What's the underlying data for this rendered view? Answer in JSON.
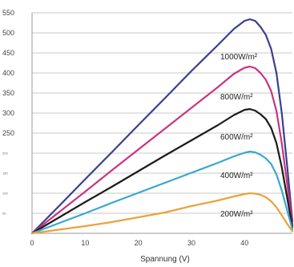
{
  "chart_data": {
    "type": "line",
    "title": "",
    "xlabel": "Spannung (V)",
    "ylabel": "",
    "xlim": [
      0,
      49
    ],
    "ylim": [
      0,
      550
    ],
    "grid": true,
    "x_ticks": [
      "0",
      "10",
      "20",
      "30",
      "40"
    ],
    "y_ticks": [
      {
        "value": 550,
        "label": "550"
      },
      {
        "value": 500,
        "label": "500"
      },
      {
        "value": 450,
        "label": "450"
      },
      {
        "value": 400,
        "label": "400"
      },
      {
        "value": 350,
        "label": "350"
      },
      {
        "value": 300,
        "label": "300"
      },
      {
        "value": 250,
        "label": "250"
      },
      {
        "value": 200,
        "label": "200"
      },
      {
        "value": 150,
        "label": "150"
      },
      {
        "value": 100,
        "label": "100"
      },
      {
        "value": 50,
        "label": "50"
      }
    ],
    "series": [
      {
        "name": "1000W/m²",
        "color": "#3b3f8f",
        "points": [
          [
            0,
            0
          ],
          [
            5,
            67
          ],
          [
            10,
            135
          ],
          [
            15,
            202
          ],
          [
            20,
            270
          ],
          [
            25,
            337
          ],
          [
            30,
            405
          ],
          [
            35,
            470
          ],
          [
            38,
            510
          ],
          [
            40,
            530
          ],
          [
            41,
            534
          ],
          [
            42,
            530
          ],
          [
            43,
            515
          ],
          [
            44,
            495
          ],
          [
            45,
            460
          ],
          [
            46,
            400
          ],
          [
            47,
            300
          ],
          [
            48,
            170
          ],
          [
            49,
            30
          ]
        ]
      },
      {
        "name": "800W/m²",
        "color": "#c8357f",
        "points": [
          [
            0,
            0
          ],
          [
            5,
            52
          ],
          [
            10,
            104
          ],
          [
            15,
            157
          ],
          [
            20,
            209
          ],
          [
            25,
            261
          ],
          [
            30,
            313
          ],
          [
            35,
            365
          ],
          [
            38,
            398
          ],
          [
            40,
            413
          ],
          [
            41,
            416
          ],
          [
            42,
            412
          ],
          [
            43,
            400
          ],
          [
            44,
            383
          ],
          [
            45,
            355
          ],
          [
            46,
            305
          ],
          [
            47,
            225
          ],
          [
            48,
            125
          ],
          [
            49,
            20
          ]
        ]
      },
      {
        "name": "600W/m²",
        "color": "#1b1b1b",
        "points": [
          [
            0,
            0
          ],
          [
            5,
            39
          ],
          [
            10,
            78
          ],
          [
            15,
            116
          ],
          [
            20,
            155
          ],
          [
            25,
            194
          ],
          [
            30,
            232
          ],
          [
            35,
            270
          ],
          [
            38,
            295
          ],
          [
            40,
            308
          ],
          [
            41,
            310
          ],
          [
            42,
            306
          ],
          [
            43,
            297
          ],
          [
            44,
            285
          ],
          [
            45,
            263
          ],
          [
            46,
            225
          ],
          [
            47,
            165
          ],
          [
            48,
            90
          ],
          [
            49,
            15
          ]
        ]
      },
      {
        "name": "400W/m²",
        "color": "#3aa6d0",
        "points": [
          [
            0,
            0
          ],
          [
            5,
            25
          ],
          [
            10,
            50
          ],
          [
            15,
            76
          ],
          [
            20,
            101
          ],
          [
            25,
            126
          ],
          [
            30,
            151
          ],
          [
            35,
            176
          ],
          [
            38,
            192
          ],
          [
            40,
            201
          ],
          [
            41,
            204
          ],
          [
            42,
            202
          ],
          [
            43,
            196
          ],
          [
            44,
            187
          ],
          [
            45,
            173
          ],
          [
            46,
            147
          ],
          [
            47,
            107
          ],
          [
            48,
            58
          ],
          [
            49,
            10
          ]
        ]
      },
      {
        "name": "200W/m²",
        "color": "#e9a33b",
        "points": [
          [
            0,
            0
          ],
          [
            5,
            9
          ],
          [
            10,
            18
          ],
          [
            15,
            28
          ],
          [
            20,
            40
          ],
          [
            25,
            52
          ],
          [
            30,
            68
          ],
          [
            35,
            82
          ],
          [
            38,
            92
          ],
          [
            40,
            98
          ],
          [
            41,
            100
          ],
          [
            42,
            99
          ],
          [
            43,
            96
          ],
          [
            44,
            90
          ],
          [
            45,
            80
          ],
          [
            46,
            65
          ],
          [
            47,
            45
          ],
          [
            48,
            24
          ],
          [
            49,
            5
          ]
        ]
      }
    ]
  }
}
